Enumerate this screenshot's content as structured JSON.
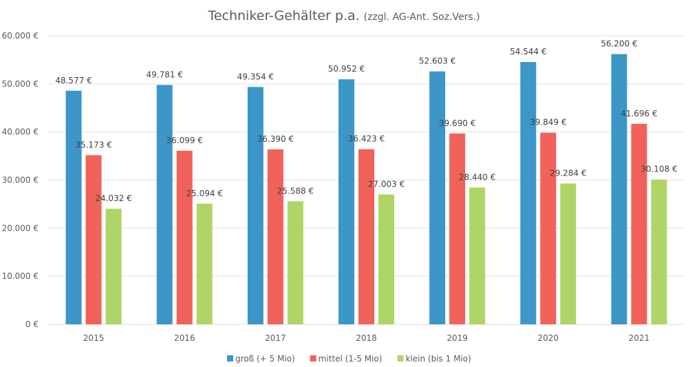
{
  "chart_data": {
    "type": "bar",
    "title": "Techniker-Gehälter p.a.",
    "subtitle": "(zzgl. AG-Ant. Soz.Vers.)",
    "categories": [
      "2015",
      "2016",
      "2017",
      "2018",
      "2019",
      "2020",
      "2021"
    ],
    "series": [
      {
        "name": "groß (+ 5 Mio)",
        "color": "#3c96c8",
        "values": [
          48577,
          49781,
          49354,
          50952,
          52603,
          54544,
          56200
        ]
      },
      {
        "name": "mittel (1-5 Mio)",
        "color": "#f0625a",
        "values": [
          35173,
          36099,
          36390,
          36423,
          39690,
          39849,
          41696
        ]
      },
      {
        "name": "klein (bis 1 Mio)",
        "color": "#aed566",
        "values": [
          24032,
          25094,
          25588,
          27003,
          28440,
          29284,
          30108
        ]
      }
    ],
    "yticks": [
      "0 €",
      "10.000 €",
      "20.000 €",
      "30.000 €",
      "40.000 €",
      "50.000 €",
      "60.000 €"
    ],
    "ylim": [
      0,
      60000
    ],
    "grid": true,
    "legend": "bottom",
    "value_suffix": " €"
  }
}
